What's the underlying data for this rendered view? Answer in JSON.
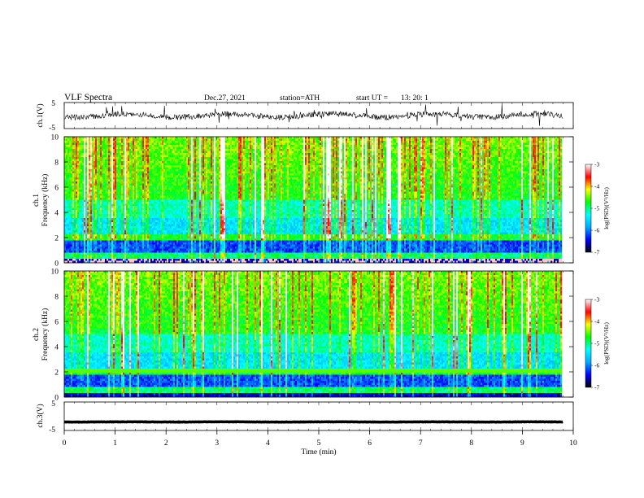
{
  "header": {
    "title": "VLF  Spectra",
    "date": "Dec.27, 2021",
    "station": "station=ATH",
    "start_label": "start  UT  =",
    "start_time": "13: 20: 1"
  },
  "colors": {
    "colormap": [
      "#000000",
      "#0000ff",
      "#00aaff",
      "#00ffff",
      "#00ff00",
      "#ffff00",
      "#ff0000",
      "#ffffff"
    ]
  },
  "chart_data": [
    {
      "type": "line",
      "panel": "ch1-waveform",
      "ylabel": "ch.1(V)",
      "ylim": [
        -5,
        5
      ],
      "yticks": [
        "5",
        "-5"
      ],
      "baseline": 0,
      "x_range_min": [
        0,
        9.8
      ]
    },
    {
      "type": "heatmap",
      "panel": "ch1-spectrogram",
      "ylabel_channel": "ch.1",
      "ylabel": "Frequency  (kHz)",
      "ylim": [
        0,
        10
      ],
      "yticks": [
        "0",
        "2",
        "4",
        "6",
        "8",
        "10"
      ],
      "colorbar": {
        "label": "log(PSD)(V²/Hz)",
        "range": [
          -7,
          -3
        ],
        "ticks": [
          "-3",
          "-4",
          "-5",
          "-6",
          "-7"
        ]
      },
      "x_range_min": [
        0,
        9.8
      ]
    },
    {
      "type": "heatmap",
      "panel": "ch2-spectrogram",
      "ylabel_channel": "ch.2",
      "ylabel": "Frequency  (kHz)",
      "ylim": [
        0,
        10
      ],
      "yticks": [
        "0",
        "2",
        "4",
        "6",
        "8",
        "10"
      ],
      "colorbar": {
        "label": "log(PSD)(V²/Hz)",
        "range": [
          -7,
          -3
        ],
        "ticks": [
          "-3",
          "-4",
          "-5",
          "-6",
          "-7"
        ]
      },
      "x_range_min": [
        0,
        9.8
      ]
    },
    {
      "type": "line",
      "panel": "ch3-waveform",
      "ylabel": "ch.3(V)",
      "ylim": [
        -5,
        5
      ],
      "yticks": [
        "5",
        "-5"
      ],
      "baseline": -2,
      "x_range_min": [
        0,
        9.8
      ]
    }
  ],
  "xaxis": {
    "label": "Time  (min)",
    "min": 0,
    "max": 10,
    "ticks": [
      "0",
      "1",
      "2",
      "3",
      "4",
      "5",
      "6",
      "7",
      "8",
      "9",
      "10"
    ]
  }
}
